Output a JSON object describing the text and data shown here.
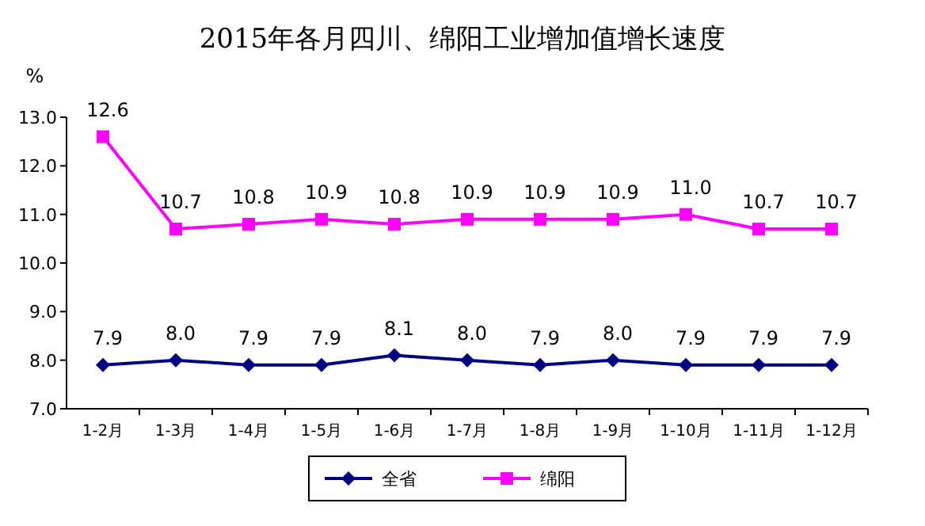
{
  "chart_data": {
    "type": "line",
    "title": "2015年各月四川、绵阳工业增加值增长速度",
    "ylabel": "%",
    "categories": [
      "1-2月",
      "1-3月",
      "1-4月",
      "1-5月",
      "1-6月",
      "1-7月",
      "1-8月",
      "1-9月",
      "1-10月",
      "1-11月",
      "1-12月"
    ],
    "series": [
      {
        "name": "全省",
        "color": "#000080",
        "marker": "diamond",
        "values": [
          7.9,
          8.0,
          7.9,
          7.9,
          8.1,
          8.0,
          7.9,
          8.0,
          7.9,
          7.9,
          7.9
        ],
        "value_labels": [
          "7.9",
          "8.0",
          "7.9",
          "7.9",
          "8.1",
          "8.0",
          "7.9",
          "8.0",
          "7.9",
          "7.9",
          "7.9"
        ]
      },
      {
        "name": "绵阳",
        "color": "#ff00ff",
        "marker": "square",
        "values": [
          12.6,
          10.7,
          10.8,
          10.9,
          10.8,
          10.9,
          10.9,
          10.9,
          11.0,
          10.7,
          10.7
        ],
        "value_labels": [
          "12.6",
          "10.7",
          "10.8",
          "10.9",
          "10.8",
          "10.9",
          "10.9",
          "10.9",
          "11.0",
          "10.7",
          "10.7"
        ]
      }
    ],
    "ylim": [
      7,
      13
    ],
    "yticks": [
      {
        "value": 7,
        "label": "7.0"
      },
      {
        "value": 8,
        "label": "8.0"
      },
      {
        "value": 9,
        "label": "9.0"
      },
      {
        "value": 10,
        "label": "10.0"
      },
      {
        "value": 11,
        "label": "11.0"
      },
      {
        "value": 12,
        "label": "12.0"
      },
      {
        "value": 13,
        "label": "13.0"
      }
    ],
    "legend": "bottom",
    "grid": false,
    "line_style": "solid"
  }
}
